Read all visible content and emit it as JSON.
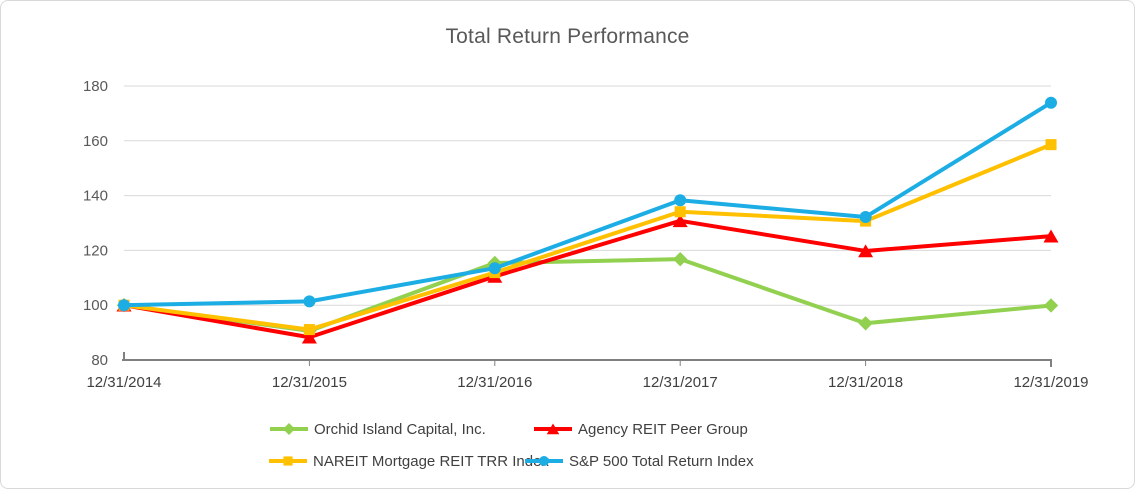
{
  "title": "Total Return Performance",
  "chart_data": {
    "type": "line",
    "title": "Total Return Performance",
    "x_labels": [
      "12/31/2014",
      "12/31/2015",
      "12/31/2016",
      "12/31/2017",
      "12/31/2018",
      "12/31/2019"
    ],
    "y_ticks": [
      80,
      100,
      120,
      140,
      160,
      180
    ],
    "ylim": [
      80,
      180
    ],
    "grid": true,
    "legend_position": "bottom",
    "series": [
      {
        "name": "Orchid Island Capital, Inc.",
        "color": "#92D050",
        "marker": "diamond",
        "values": [
          100,
          90.6,
          115.4,
          116.8,
          93.4,
          99.9
        ]
      },
      {
        "name": "Agency REIT Peer Group",
        "color": "#FF0000",
        "marker": "triangle",
        "values": [
          100,
          88.3,
          110.5,
          130.8,
          119.8,
          125.2
        ]
      },
      {
        "name": "NAREIT Mortgage REIT TRR Index",
        "color": "#FFC000",
        "marker": "square",
        "values": [
          100,
          91.1,
          111.9,
          134.1,
          130.7,
          158.6
        ]
      },
      {
        "name": "S&P 500 Total Return Index",
        "color": "#1CADE4",
        "marker": "circle",
        "values": [
          100,
          101.4,
          113.5,
          138.3,
          132.2,
          173.9
        ]
      }
    ]
  },
  "colors": {
    "grid": "#D9D9D9",
    "axis": "#808080",
    "title_text": "#595959",
    "y_label_text": "#595959",
    "x_label_text": "#404040",
    "legend_text": "#404040",
    "border": "#D9D9D9",
    "background": "#FFFFFF"
  }
}
